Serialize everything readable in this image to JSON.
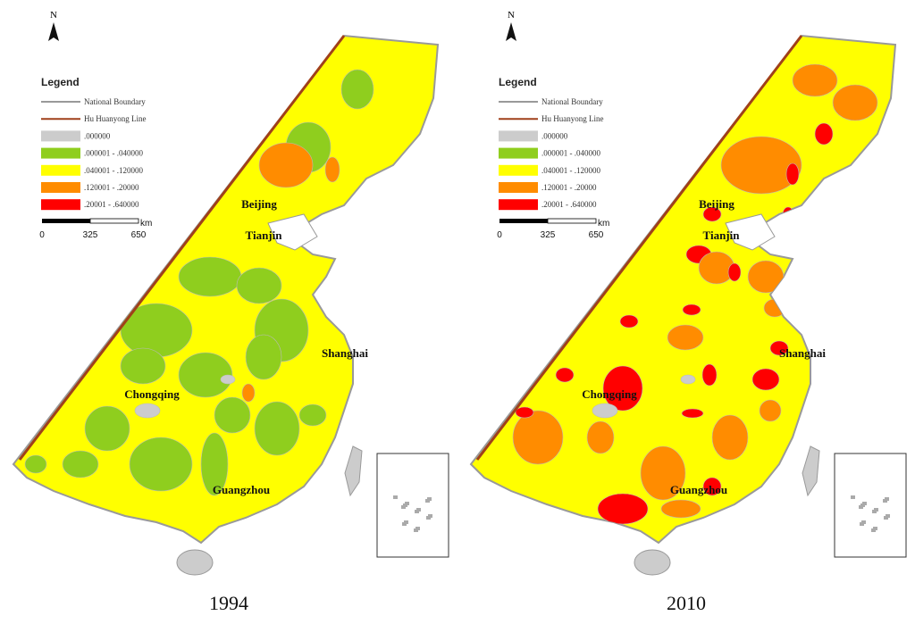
{
  "panels": [
    {
      "caption": "1994",
      "north": "N",
      "legend": {
        "title": "Legend",
        "items": [
          {
            "label": "National Boundary",
            "color": "#999999"
          },
          {
            "label": "Hu Huanyong Line",
            "color": "#a0401a"
          },
          {
            "label": ".000000",
            "color": "#cccccc"
          },
          {
            "label": ".000001 - .040000",
            "color": "#8fce1e"
          },
          {
            "label": ".040001 - .120000",
            "color": "#ffff00"
          },
          {
            "label": ".120001 - .20000",
            "color": "#ff8c00"
          },
          {
            "label": ".20001 - .640000",
            "color": "#ff0000"
          }
        ]
      },
      "scale": {
        "ticks": [
          "0",
          "325",
          "650"
        ],
        "unit": "km"
      },
      "cities": [
        "Beijing",
        "Tianjin",
        "Shanghai",
        "Chongqing",
        "Guangzhou"
      ]
    },
    {
      "caption": "2010",
      "north": "N",
      "legend": {
        "title": "Legend",
        "items": [
          {
            "label": "National Boundary",
            "color": "#999999"
          },
          {
            "label": "Hu Huanyong Line",
            "color": "#a0401a"
          },
          {
            "label": ".000000",
            "color": "#cccccc"
          },
          {
            "label": ".000001 - .040000",
            "color": "#8fce1e"
          },
          {
            "label": ".040001 - .120000",
            "color": "#ffff00"
          },
          {
            "label": ".120001 - .20000",
            "color": "#ff8c00"
          },
          {
            "label": ".20001 - .640000",
            "color": "#ff0000"
          }
        ]
      },
      "scale": {
        "ticks": [
          "0",
          "325",
          "650"
        ],
        "unit": "km"
      },
      "cities": [
        "Beijing",
        "Tianjin",
        "Shanghai",
        "Chongqing",
        "Guangzhou"
      ]
    }
  ]
}
